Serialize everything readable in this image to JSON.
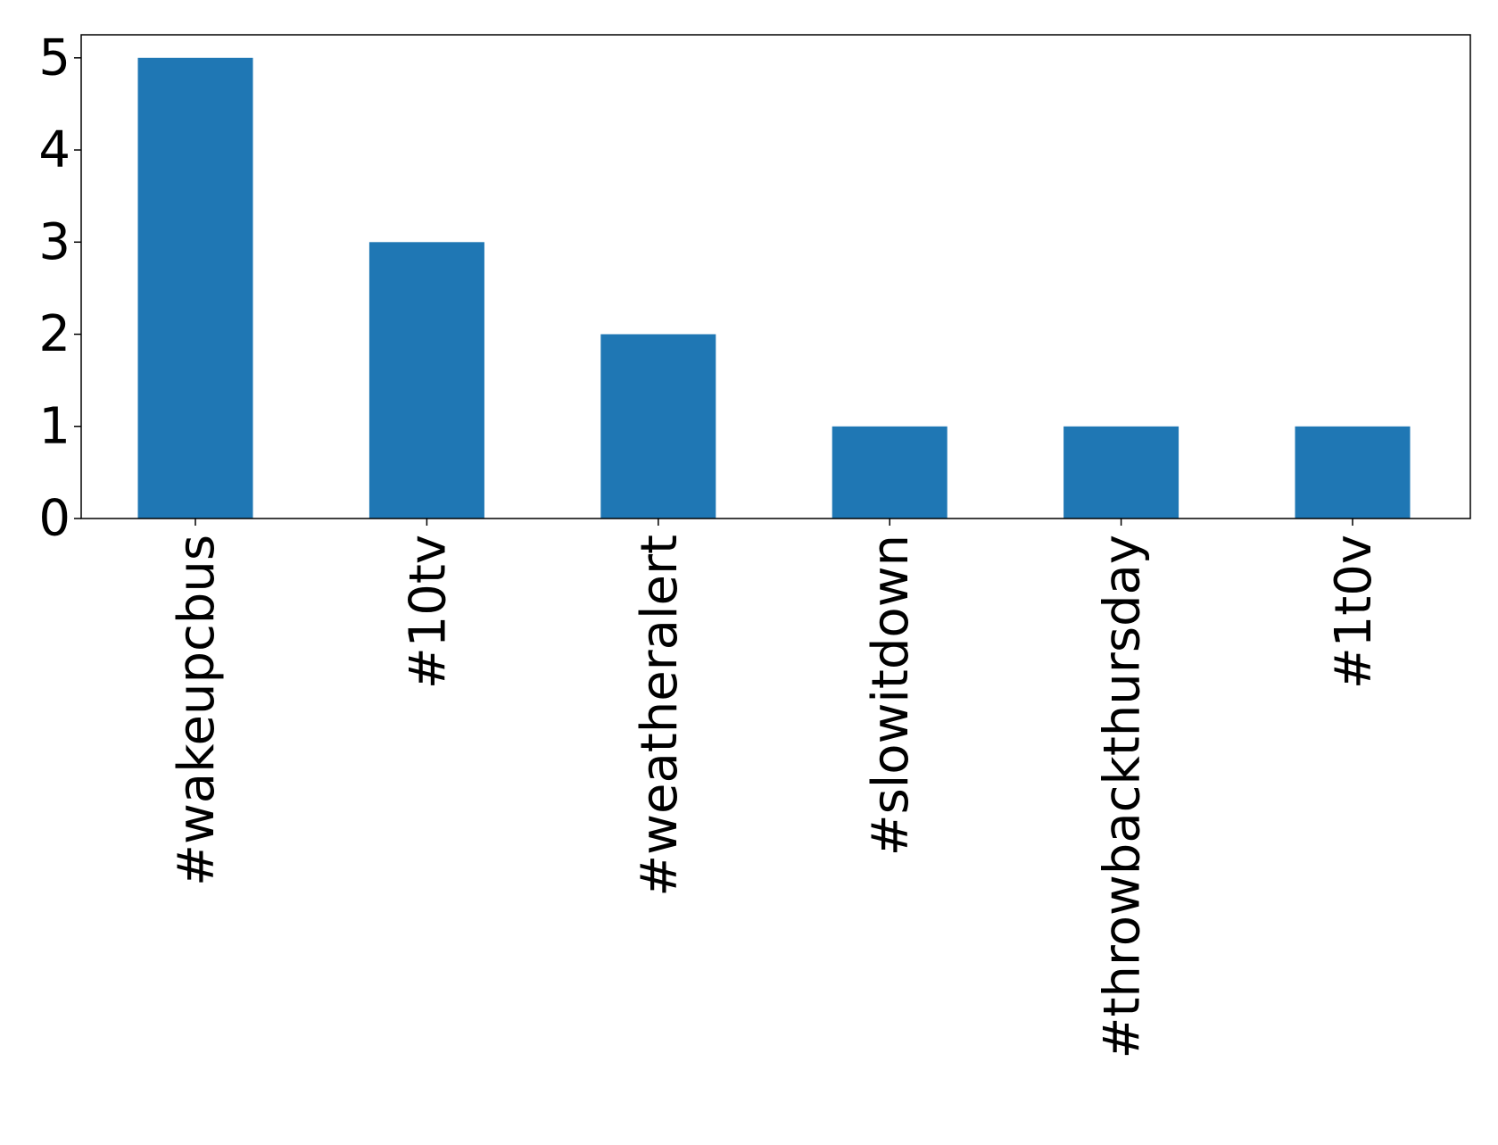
{
  "chart_data": {
    "type": "bar",
    "categories": [
      "#wakeupcbus",
      "#10tv",
      "#weatheralert",
      "#slowitdown",
      "#throwbackthursday",
      "#1t0v"
    ],
    "values": [
      5,
      3,
      2,
      1,
      1,
      1
    ],
    "title": "",
    "xlabel": "",
    "ylabel": "",
    "ylim": [
      0,
      5.25
    ],
    "yticks": [
      0,
      1,
      2,
      3,
      4,
      5
    ],
    "xtick_rotation": "vertical",
    "grid": false,
    "legend": "none",
    "bar_color": "#1f77b4"
  }
}
